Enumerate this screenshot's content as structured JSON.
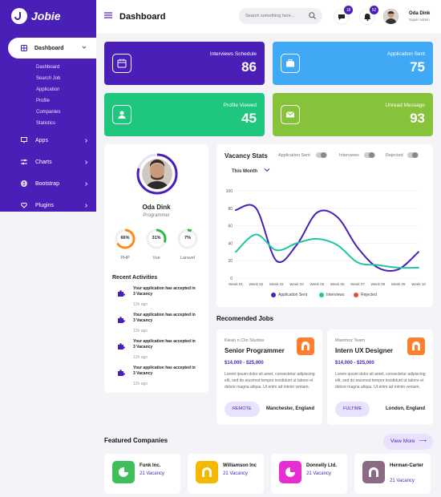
{
  "brand": {
    "name": "Jobie"
  },
  "sidebar": {
    "active": "Dashboard",
    "submenu": [
      "Dashboard",
      "Search Job",
      "Application",
      "Profile",
      "Companies",
      "Statistics"
    ],
    "items": [
      {
        "label": "Apps",
        "icon": "monitor-icon"
      },
      {
        "label": "Charts",
        "icon": "sliders-icon"
      },
      {
        "label": "Bootstrap",
        "icon": "globe-icon"
      },
      {
        "label": "Plugins",
        "icon": "heart-icon"
      }
    ]
  },
  "header": {
    "title": "Dashboard",
    "search_placeholder": "Search something here...",
    "messages_count": "18",
    "notifications_count": "52",
    "user_name": "Oda Dink",
    "user_role": "Super Admin"
  },
  "stats": [
    {
      "label": "Interviews Schedule",
      "value": "86",
      "color": "#4a1fb8",
      "icon": "calendar-icon"
    },
    {
      "label": "Application Sent",
      "value": "75",
      "color": "#40a9f5",
      "icon": "briefcase-icon"
    },
    {
      "label": "Profile Viewed",
      "value": "45",
      "color": "#1ec77d",
      "icon": "user-icon"
    },
    {
      "label": "Unread Message",
      "value": "93",
      "color": "#86c33a",
      "icon": "mail-icon"
    }
  ],
  "profile": {
    "name": "Oda Dink",
    "role": "Programmer",
    "skills": [
      {
        "value": "66%",
        "name": "PHP",
        "percent": 66,
        "color": "#ff8c1a"
      },
      {
        "value": "31%",
        "name": "Vue",
        "percent": 31,
        "color": "#2db84c"
      },
      {
        "value": "7%",
        "name": "Laravel",
        "percent": 7,
        "color": "#2db84c"
      }
    ]
  },
  "activities": {
    "title": "Recent Activities",
    "items": [
      {
        "text": "Your application has accepted in",
        "bold": "3 Vacancy",
        "time": "12h ago"
      },
      {
        "text": "Your application has accepted in",
        "bold": "3 Vacancy",
        "time": "12h ago"
      },
      {
        "text": "Your application has accepted in",
        "bold": "3 Vacancy",
        "time": "12h ago"
      },
      {
        "text": "Your application has accepted in",
        "bold": "3 Vacancy",
        "time": "12h ago"
      }
    ]
  },
  "vacancy": {
    "title": "Vacancy Stats",
    "toggles": [
      "Application Sent",
      "Interviews",
      "Rejected"
    ],
    "period": "This Month",
    "legend": [
      {
        "name": "Application Sent",
        "color": "#4a1fb8"
      },
      {
        "name": "Interviews",
        "color": "#1ec7a0"
      },
      {
        "name": "Rejected",
        "color": "#e74c3c"
      }
    ]
  },
  "chart_data": {
    "type": "line",
    "x": [
      "Week 01",
      "Week 02",
      "Week 03",
      "Week 04",
      "Week 05",
      "Week 06",
      "Week 07",
      "Week 08",
      "Week 09",
      "Week 10"
    ],
    "y_ticks": [
      0,
      20,
      40,
      60,
      80,
      100
    ],
    "ylim": [
      0,
      100
    ],
    "series": [
      {
        "name": "Application Sent",
        "color": "#4a1fb8",
        "values": [
          78,
          80,
          20,
          38,
          75,
          70,
          35,
          12,
          10,
          30
        ]
      },
      {
        "name": "Interviews",
        "color": "#1ec7a0",
        "values": [
          30,
          50,
          32,
          40,
          45,
          38,
          18,
          15,
          12,
          12
        ]
      }
    ]
  },
  "jobs": {
    "title": "Recomended Jobs",
    "items": [
      {
        "company": "Klean n Clin Studios",
        "role": "Senior Programmer",
        "salary": "$14,000 - $25,000",
        "desc": "Lorem ipsum dolor sit amet, consectetur adipiscing elit, sed do eiusmod tempor incididunt ut labore et dolore magna aliqua. Ut enim ad minim veniam,",
        "type": "REMOTE",
        "location": "Manchester, England"
      },
      {
        "company": "Maximoz Team",
        "role": "Intern UX Designer",
        "salary": "$14,000 - $25,000",
        "desc": "Lorem ipsum dolor sit amet, consectetur adipiscing elit, sed do eiusmod tempor incididunt ut labore et dolore magna aliqua. Ut enim ad minim veniam,",
        "type": "FULTIME",
        "location": "London, England"
      }
    ]
  },
  "companies": {
    "title": "Featured Companies",
    "view_more": "View More",
    "items": [
      {
        "name": "Funk Inc.",
        "vacancy": "21 Vacancy",
        "color": "#3fbf5a"
      },
      {
        "name": "Williamson Inc",
        "vacancy": "21 Vacancy",
        "color": "#f5b800"
      },
      {
        "name": "Donnelly Ltd.",
        "vacancy": "21 Vacancy",
        "color": "#e62fd3"
      },
      {
        "name": "Herman-Carter",
        "vacancy": "21 Vacancy",
        "color": "#8b6a86"
      }
    ]
  }
}
